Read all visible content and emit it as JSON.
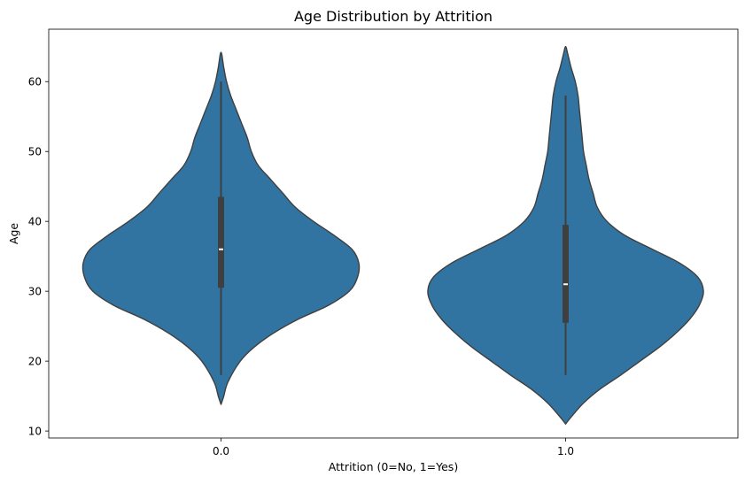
{
  "chart_data": {
    "type": "violin",
    "title": "Age Distribution by Attrition",
    "xlabel": "Attrition (0=No, 1=Yes)",
    "ylabel": "Age",
    "categories": [
      "0.0",
      "1.0"
    ],
    "yticks": [
      "10",
      "20",
      "30",
      "40",
      "50",
      "60"
    ],
    "ylim": [
      9,
      67.5
    ],
    "grid": false,
    "legend": "none",
    "color": "#3274a1",
    "edge_color": "#3f3f3f",
    "violins": [
      {
        "category": "0.0",
        "min": 18,
        "q1": 30.5,
        "median": 36,
        "q3": 43.5,
        "max": 60,
        "profile": [
          [
            13.8,
            0.0
          ],
          [
            15.0,
            0.02
          ],
          [
            17.0,
            0.05
          ],
          [
            20.0,
            0.14
          ],
          [
            22.0,
            0.24
          ],
          [
            24.0,
            0.38
          ],
          [
            26.0,
            0.56
          ],
          [
            28.0,
            0.78
          ],
          [
            30.0,
            0.93
          ],
          [
            32.0,
            0.99
          ],
          [
            34.0,
            1.0
          ],
          [
            36.0,
            0.95
          ],
          [
            38.0,
            0.82
          ],
          [
            40.0,
            0.67
          ],
          [
            42.0,
            0.54
          ],
          [
            44.0,
            0.45
          ],
          [
            46.0,
            0.36
          ],
          [
            48.0,
            0.27
          ],
          [
            50.0,
            0.22
          ],
          [
            52.0,
            0.19
          ],
          [
            54.0,
            0.15
          ],
          [
            56.0,
            0.11
          ],
          [
            58.0,
            0.07
          ],
          [
            60.0,
            0.04
          ],
          [
            62.0,
            0.02
          ],
          [
            64.2,
            0.0
          ]
        ]
      },
      {
        "category": "1.0",
        "min": 18,
        "q1": 25.5,
        "median": 31,
        "q3": 39.5,
        "max": 58,
        "profile": [
          [
            11.0,
            0.0
          ],
          [
            12.0,
            0.04
          ],
          [
            14.0,
            0.13
          ],
          [
            16.0,
            0.25
          ],
          [
            18.0,
            0.4
          ],
          [
            20.0,
            0.54
          ],
          [
            22.0,
            0.68
          ],
          [
            24.0,
            0.8
          ],
          [
            26.0,
            0.9
          ],
          [
            28.0,
            0.97
          ],
          [
            30.0,
            1.0
          ],
          [
            32.0,
            0.96
          ],
          [
            34.0,
            0.83
          ],
          [
            36.0,
            0.63
          ],
          [
            38.0,
            0.43
          ],
          [
            40.0,
            0.3
          ],
          [
            42.0,
            0.23
          ],
          [
            44.0,
            0.2
          ],
          [
            46.0,
            0.17
          ],
          [
            48.0,
            0.15
          ],
          [
            50.0,
            0.13
          ],
          [
            52.0,
            0.12
          ],
          [
            54.0,
            0.11
          ],
          [
            56.0,
            0.1
          ],
          [
            58.0,
            0.09
          ],
          [
            60.0,
            0.07
          ],
          [
            62.0,
            0.04
          ],
          [
            64.0,
            0.015
          ],
          [
            65.0,
            0.0
          ]
        ]
      }
    ]
  }
}
